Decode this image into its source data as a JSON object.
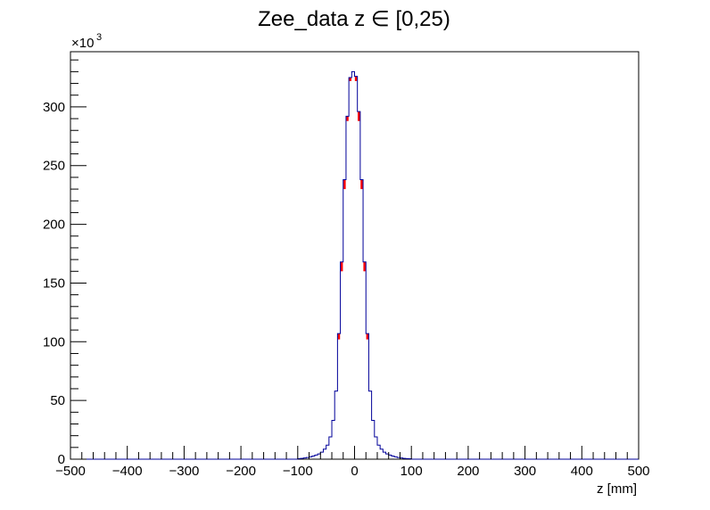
{
  "chart_data": {
    "type": "histogram",
    "title": "Zee_data z  ∈ [0,25)",
    "xlabel": "z [mm]",
    "ylabel": "",
    "xlim": [
      -500,
      500
    ],
    "ylim": [
      0,
      347000
    ],
    "y_multiplier_label": "×10",
    "y_multiplier_exponent": "3",
    "xticks": [
      -500,
      -400,
      -300,
      -200,
      -100,
      0,
      100,
      200,
      300,
      400,
      500
    ],
    "xtick_labels": [
      "−500",
      "−400",
      "−300",
      "−200",
      "−100",
      "0",
      "100",
      "200",
      "300",
      "400",
      "500"
    ],
    "yticks": [
      0,
      50000,
      100000,
      150000,
      200000,
      250000,
      300000
    ],
    "ytick_labels": [
      "0",
      "50",
      "100",
      "150",
      "200",
      "250",
      "300"
    ],
    "bin_edges_range": [
      -500,
      500
    ],
    "bin_width": 5,
    "legend": "none",
    "grid": false,
    "series": [
      {
        "style": "filled-error",
        "color": "#ff0000",
        "x": [
          -97.5,
          -92.5,
          -87.5,
          -82.5,
          -77.5,
          -72.5,
          -67.5,
          -62.5,
          -57.5,
          -52.5,
          -47.5,
          -42.5,
          -37.5,
          -32.5,
          -27.5,
          -22.5,
          -17.5,
          -12.5,
          -7.5,
          -2.5,
          2.5,
          7.5,
          12.5,
          17.5,
          22.5,
          27.5,
          32.5,
          37.5,
          42.5,
          47.5,
          52.5,
          57.5,
          62.5,
          67.5,
          72.5,
          77.5,
          82.5,
          87.5,
          92.5,
          97.5
        ],
        "values": [
          500,
          700,
          1000,
          1400,
          2000,
          2700,
          3500,
          4500,
          6000,
          8500,
          12000,
          19000,
          33000,
          58000,
          102000,
          160000,
          230000,
          288000,
          322000,
          330000,
          322000,
          288000,
          230000,
          160000,
          102000,
          58000,
          33000,
          19000,
          12000,
          8500,
          6000,
          4500,
          3500,
          2700,
          2000,
          1400,
          1000,
          700,
          500,
          400
        ]
      },
      {
        "style": "step",
        "color": "#000099",
        "x": [
          -97.5,
          -92.5,
          -87.5,
          -82.5,
          -77.5,
          -72.5,
          -67.5,
          -62.5,
          -57.5,
          -52.5,
          -47.5,
          -42.5,
          -37.5,
          -32.5,
          -27.5,
          -22.5,
          -17.5,
          -12.5,
          -7.5,
          -2.5,
          2.5,
          7.5,
          12.5,
          17.5,
          22.5,
          27.5,
          32.5,
          37.5,
          42.5,
          47.5,
          52.5,
          57.5,
          62.5,
          67.5,
          72.5,
          77.5,
          82.5,
          87.5,
          92.5,
          97.5
        ],
        "values": [
          500,
          700,
          1000,
          1400,
          2000,
          2700,
          3500,
          4500,
          6000,
          8500,
          12000,
          19000,
          33000,
          58000,
          107000,
          168000,
          238000,
          292000,
          325000,
          330000,
          326000,
          296000,
          238000,
          168000,
          107000,
          58000,
          33000,
          19000,
          12000,
          8500,
          6000,
          4500,
          3500,
          2700,
          2000,
          1400,
          1000,
          700,
          500,
          400
        ]
      }
    ]
  }
}
